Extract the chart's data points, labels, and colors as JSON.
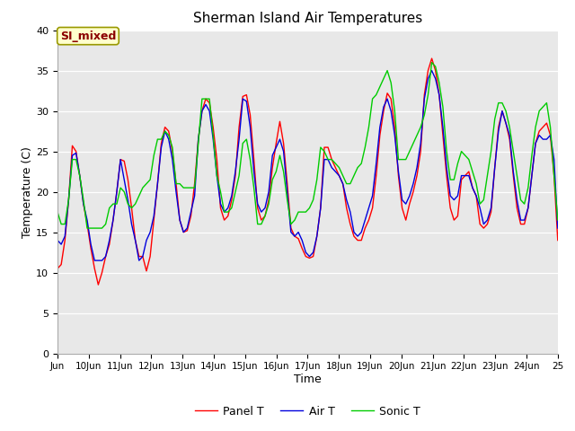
{
  "title": "Sherman Island Air Temperatures",
  "xlabel": "Time",
  "ylabel": "Temperature (C)",
  "ylim": [
    0,
    40
  ],
  "yticks": [
    0,
    5,
    10,
    15,
    20,
    25,
    30,
    35,
    40
  ],
  "annotation": "SI_mixed",
  "bg_color": "#e8e8e8",
  "fig_color": "#ffffff",
  "line_colors": {
    "panel": "#ff0000",
    "air": "#0000dd",
    "sonic": "#00cc00"
  },
  "legend_labels": [
    "Panel T",
    "Air T",
    "Sonic T"
  ],
  "xtick_labels": [
    "Jun",
    "10Jun",
    "11Jun",
    "12Jun",
    "13Jun",
    "14Jun",
    "15Jun",
    "16Jun",
    "17Jun",
    "18Jun",
    "19Jun",
    "20Jun",
    "21Jun",
    "22Jun",
    "23Jun",
    "24Jun",
    "25"
  ],
  "panel_t": [
    10.5,
    11.0,
    14.0,
    19.0,
    25.7,
    25.0,
    22.0,
    18.5,
    16.0,
    13.0,
    10.5,
    8.5,
    10.0,
    12.0,
    13.5,
    16.5,
    20.0,
    24.0,
    23.8,
    21.5,
    18.0,
    14.0,
    12.0,
    12.0,
    10.2,
    12.0,
    16.5,
    21.0,
    26.0,
    28.0,
    27.5,
    25.0,
    21.0,
    16.5,
    15.0,
    15.2,
    17.0,
    21.0,
    26.5,
    30.0,
    31.5,
    31.0,
    28.0,
    24.0,
    18.0,
    16.5,
    17.0,
    19.0,
    22.0,
    28.0,
    31.8,
    32.0,
    29.5,
    24.0,
    18.0,
    16.5,
    17.0,
    19.0,
    23.0,
    26.0,
    28.7,
    26.0,
    21.0,
    15.5,
    14.5,
    14.2,
    13.0,
    12.0,
    11.8,
    12.0,
    14.5,
    18.0,
    25.5,
    25.5,
    24.0,
    23.0,
    22.0,
    21.0,
    18.0,
    16.0,
    14.5,
    14.0,
    14.0,
    15.5,
    16.5,
    18.0,
    22.0,
    27.0,
    30.0,
    32.2,
    31.5,
    28.0,
    22.0,
    18.0,
    16.5,
    18.5,
    20.0,
    22.0,
    25.0,
    32.0,
    35.0,
    36.5,
    35.0,
    32.0,
    27.0,
    22.0,
    18.0,
    16.5,
    17.0,
    21.5,
    22.0,
    22.5,
    20.5,
    19.5,
    16.0,
    15.5,
    16.0,
    17.5,
    23.0,
    28.0,
    30.0,
    28.5,
    26.5,
    22.0,
    18.0,
    16.0,
    16.0,
    18.0,
    22.0,
    26.0,
    27.5,
    28.0,
    28.5,
    27.0,
    22.0,
    14.0
  ],
  "air_t": [
    14.0,
    13.5,
    14.5,
    19.0,
    24.5,
    24.8,
    22.0,
    18.5,
    16.5,
    13.5,
    11.5,
    11.5,
    11.5,
    12.0,
    14.0,
    16.5,
    20.0,
    24.0,
    21.5,
    19.0,
    16.0,
    14.0,
    11.5,
    12.0,
    14.0,
    15.0,
    17.0,
    21.0,
    25.5,
    27.5,
    26.5,
    24.0,
    20.0,
    16.5,
    15.0,
    15.5,
    17.5,
    19.5,
    26.5,
    30.0,
    30.8,
    30.0,
    26.5,
    22.0,
    18.5,
    17.5,
    18.0,
    19.5,
    22.5,
    26.5,
    31.5,
    31.2,
    28.0,
    22.5,
    18.5,
    17.5,
    18.0,
    20.0,
    24.5,
    25.5,
    26.5,
    25.0,
    20.0,
    15.0,
    14.5,
    15.0,
    14.0,
    12.5,
    12.0,
    12.5,
    14.5,
    18.0,
    24.0,
    24.0,
    23.0,
    22.5,
    22.0,
    21.0,
    19.0,
    17.5,
    15.0,
    14.5,
    15.0,
    16.5,
    18.0,
    19.5,
    23.5,
    28.0,
    30.5,
    31.5,
    30.0,
    27.0,
    22.5,
    19.0,
    18.5,
    19.5,
    21.0,
    23.0,
    26.0,
    31.5,
    34.0,
    35.0,
    34.0,
    32.0,
    28.0,
    23.0,
    19.5,
    19.0,
    19.5,
    22.0,
    22.0,
    22.0,
    20.5,
    19.5,
    18.0,
    16.0,
    16.5,
    18.0,
    23.0,
    27.5,
    30.0,
    28.5,
    27.0,
    22.5,
    19.0,
    16.5,
    16.5,
    18.0,
    22.0,
    26.0,
    27.0,
    26.5,
    26.5,
    27.0,
    24.0,
    15.5
  ],
  "sonic_t": [
    17.5,
    16.0,
    16.0,
    19.0,
    24.0,
    24.0,
    22.0,
    19.0,
    15.5,
    15.5,
    15.5,
    15.5,
    15.5,
    16.0,
    18.0,
    18.5,
    18.5,
    20.5,
    20.0,
    18.5,
    18.0,
    18.5,
    19.5,
    20.5,
    21.0,
    21.5,
    24.5,
    26.5,
    26.5,
    27.5,
    27.0,
    25.5,
    21.0,
    21.0,
    20.5,
    20.5,
    20.5,
    20.5,
    26.0,
    31.5,
    31.5,
    31.5,
    27.0,
    22.0,
    20.0,
    17.5,
    17.5,
    18.0,
    20.0,
    22.0,
    26.0,
    26.5,
    24.0,
    20.5,
    16.0,
    16.0,
    17.0,
    18.5,
    21.5,
    22.5,
    24.5,
    22.5,
    19.0,
    16.0,
    16.5,
    17.5,
    17.5,
    17.5,
    18.0,
    19.0,
    21.5,
    25.5,
    25.0,
    24.0,
    24.0,
    23.5,
    23.0,
    22.0,
    21.0,
    21.0,
    22.0,
    23.0,
    23.5,
    25.5,
    28.0,
    31.5,
    32.0,
    33.0,
    34.0,
    35.0,
    33.5,
    30.0,
    24.0,
    24.0,
    24.0,
    25.0,
    26.0,
    27.0,
    28.0,
    29.5,
    32.0,
    36.0,
    35.5,
    33.5,
    30.5,
    25.0,
    21.5,
    21.5,
    23.5,
    25.0,
    24.5,
    24.0,
    22.5,
    21.0,
    18.5,
    19.0,
    22.0,
    25.0,
    29.0,
    31.0,
    31.0,
    30.0,
    28.0,
    25.0,
    22.0,
    19.0,
    18.5,
    20.5,
    24.5,
    28.0,
    30.0,
    30.5,
    31.0,
    28.0,
    22.0,
    16.5
  ]
}
